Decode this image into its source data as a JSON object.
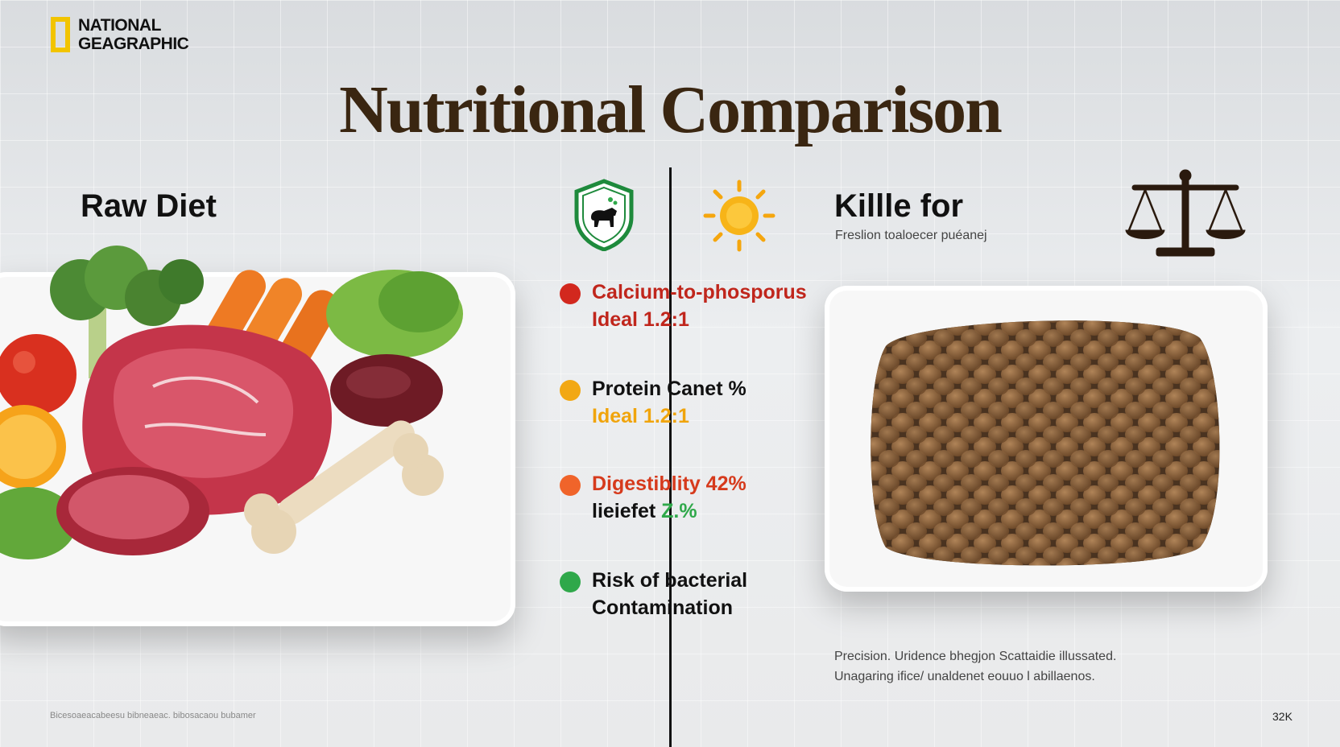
{
  "brand": {
    "line1": "NATIONAL",
    "line2": "GEAGRAPHIC"
  },
  "title": "Nutritional Comparison",
  "left": {
    "heading": "Raw Diet"
  },
  "right": {
    "heading": "Killle for",
    "subheading": "Freslion toaloecer puéanej",
    "note_line1": "Precision. Uridence bhegjon Scattaidie illussated.",
    "note_line2": "Unagaring ifice/ unaldenet eouuo l abillaenos."
  },
  "icons": {
    "shield": "dog-shield-icon",
    "sun": "sun-icon",
    "scale": "balance-scale-icon"
  },
  "metrics": [
    {
      "line1": "Calcium-to-phosporus",
      "line2": "Ideal 1.2:1",
      "dot_color": "#d2281e",
      "color1": "#c0261c",
      "color2": "#c0261c"
    },
    {
      "line1": "Protein Canet %",
      "line2": "Ideal 1.2:1",
      "dot_color": "#f2a814",
      "color1": "#111111",
      "color2": "#f0a40c"
    },
    {
      "line1": "Digestiblity 42%",
      "line2": "lieiefet",
      "line2_extra": "Z.%",
      "dot_color": "#f0642a",
      "color1": "#d63a1c",
      "color2": "#111111"
    },
    {
      "line1": "Risk of bacterial",
      "line2": "Contamination",
      "dot_color": "#2fa84a",
      "color1": "#111111",
      "color2": "#111111"
    }
  ],
  "footer": {
    "left": "Bicesoaeacabeesu bibneaeac. bibosacaou bubamer",
    "page": "32K"
  }
}
